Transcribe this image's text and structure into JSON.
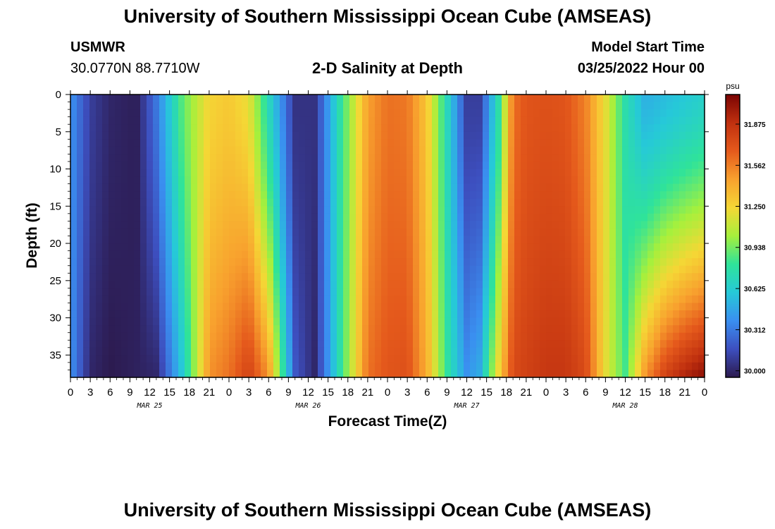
{
  "header": {
    "title": "University of Southern Mississippi Ocean Cube (AMSEAS)",
    "station": "USMWR",
    "coords": "30.0770N  88.7710W",
    "subtitle": "2-D Salinity at Depth",
    "model_start_label": "Model Start Time",
    "model_start_value": "03/25/2022 Hour 00"
  },
  "footer": {
    "title": "University of Southern Mississippi Ocean Cube (AMSEAS)"
  },
  "colors": {
    "scale": [
      "#2c1a4e",
      "#3d4fbf",
      "#3a8ff0",
      "#26c9d8",
      "#2fe39a",
      "#a6f03c",
      "#f5d735",
      "#f8a12e",
      "#e55a1c",
      "#c0300f",
      "#7a0403"
    ]
  },
  "chart_data": {
    "type": "heatmap",
    "title": "2-D Salinity at Depth",
    "xlabel": "Forecast Time(Z)",
    "ylabel": "Depth (ft)",
    "x_range_hours": [
      0,
      96
    ],
    "ylim": [
      0,
      38
    ],
    "x_tick_labels": [
      "0",
      "3",
      "6",
      "9",
      "12",
      "15",
      "18",
      "21",
      "0",
      "3",
      "6",
      "9",
      "12",
      "15",
      "18",
      "21",
      "0",
      "3",
      "6",
      "9",
      "12",
      "15",
      "18",
      "21",
      "0",
      "3",
      "6",
      "9",
      "12",
      "15",
      "18",
      "21",
      "0"
    ],
    "date_labels": [
      {
        "label": "MAR 25",
        "hour": 12
      },
      {
        "label": "MAR 26",
        "hour": 36
      },
      {
        "label": "MAR 27",
        "hour": 60
      },
      {
        "label": "MAR 28",
        "hour": 84
      }
    ],
    "y_ticks": [
      0,
      5,
      10,
      15,
      20,
      25,
      30,
      35
    ],
    "colorbar": {
      "unit": "psu",
      "min": 29.95,
      "max": 32.1,
      "ticks": [
        "31.875",
        "31.562",
        "31.250",
        "30.938",
        "30.625",
        "30.312",
        "30.000"
      ],
      "tick_values": [
        31.875,
        31.562,
        31.25,
        30.938,
        30.625,
        30.312,
        30.0
      ]
    },
    "salinity_keyframes": {
      "time_hours": [
        0,
        3,
        6,
        10,
        13,
        17,
        21,
        24,
        27,
        30,
        34,
        37,
        41,
        45,
        48,
        51,
        54,
        57,
        60,
        62,
        65,
        67,
        69,
        72,
        75,
        78,
        81,
        84,
        87,
        90,
        93,
        96
      ],
      "surface_psu": [
        30.4,
        30.1,
        30.0,
        29.97,
        30.3,
        30.9,
        31.25,
        31.3,
        31.2,
        30.7,
        30.05,
        30.05,
        30.8,
        31.45,
        31.6,
        31.58,
        31.3,
        30.7,
        30.1,
        30.1,
        30.8,
        31.6,
        31.7,
        31.72,
        31.7,
        31.55,
        31.2,
        30.75,
        30.5,
        30.55,
        30.6,
        30.65
      ],
      "bottom_psu": [
        30.4,
        30.0,
        29.95,
        29.98,
        30.0,
        30.6,
        31.5,
        31.6,
        31.8,
        31.5,
        30.2,
        30.0,
        30.8,
        31.6,
        31.7,
        31.72,
        31.4,
        30.8,
        30.4,
        30.5,
        31.3,
        31.75,
        31.8,
        31.85,
        31.85,
        31.75,
        31.2,
        30.85,
        31.5,
        31.8,
        31.95,
        32.05
      ]
    }
  }
}
